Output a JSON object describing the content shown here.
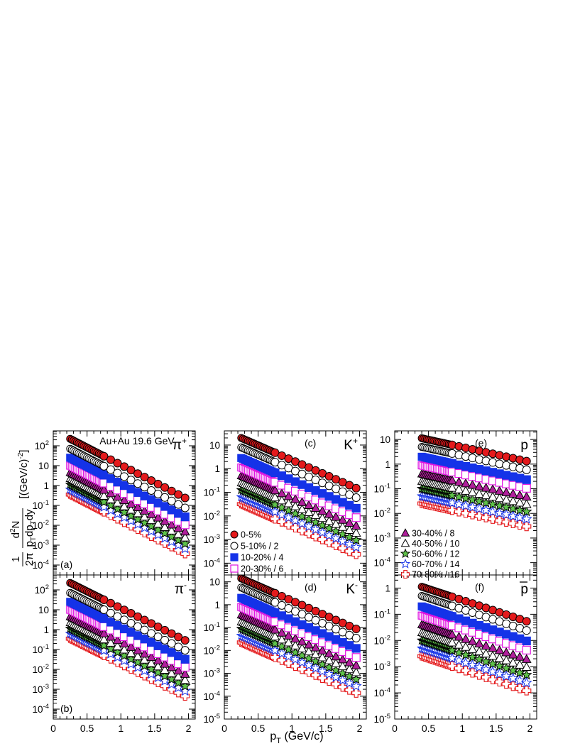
{
  "figure": {
    "header": "Au+Au 19.6 GeV",
    "xlabel": "p",
    "xlabel_sub": "T",
    "xlabel_unit": " (GeV/c)",
    "ylabel_frac_num": "d",
    "ylabel_frac_num_sup": "2",
    "ylabel_frac_num_tail": "N",
    "ylabel_one": "1",
    "ylabel_two_pi": "2π",
    "ylabel_den": "p",
    "ylabel_den_sub": "T",
    "ylabel_den_tail": "dp",
    "ylabel_den_sub2": "T",
    "ylabel_den_end": "dy",
    "ylabel_unit": "[(GeV/c)",
    "ylabel_unit_sup": "-2",
    "ylabel_unit_end": "]"
  },
  "legend_left": [
    {
      "label": "0-5%",
      "marker": "circle",
      "color": "#e41a1c",
      "fill": true
    },
    {
      "label": "5-10% / 2",
      "marker": "circle",
      "color": "#000000",
      "fill": false
    },
    {
      "label": "10-20% / 4",
      "marker": "square",
      "color": "#1533e8",
      "fill": true
    },
    {
      "label": "20-30% / 6",
      "marker": "square",
      "color": "#e015e0",
      "fill": false
    }
  ],
  "legend_right": [
    {
      "label": "30-40% / 8",
      "marker": "triangle",
      "color": "#b0209b",
      "fill": true
    },
    {
      "label": "40-50% / 10",
      "marker": "triangle",
      "color": "#000000",
      "fill": false
    },
    {
      "label": "50-60% / 12",
      "marker": "star",
      "color": "#5fc24a",
      "fill": true
    },
    {
      "label": "60-70% / 14",
      "marker": "star",
      "color": "#1533e8",
      "fill": false
    },
    {
      "label": "70-80% / 16",
      "marker": "cross",
      "color": "#e41a1c",
      "fill": false
    }
  ],
  "chart_data": [
    {
      "panel": "(a)",
      "particle": "π",
      "charge": "+",
      "type": "scatter",
      "xlim": [
        0,
        2.1
      ],
      "ylim_log10": [
        -4.5,
        2.75
      ],
      "scale": "log",
      "xticks": [
        "0",
        "0.5",
        "1",
        "1.5",
        "2"
      ],
      "yticks": [
        {
          "base": "10",
          "exp": "2"
        },
        {
          "base": "10",
          "exp": ""
        },
        {
          "base": "1",
          "exp": ""
        },
        {
          "base": "10",
          "exp": "-1"
        },
        {
          "base": "10",
          "exp": "-2"
        },
        {
          "base": "10",
          "exp": "-3"
        },
        {
          "base": "10",
          "exp": "-4"
        }
      ],
      "spectrum": {
        "x_min": 0.25,
        "x_max": 2.0,
        "log10_y_at_min": 2.35,
        "log10_slope": -1.75,
        "dense_until": 0.75,
        "dense_step": 0.025,
        "sparse_step": 0.1
      },
      "centrality_offsets_log10": [
        0,
        -0.5,
        -0.95,
        -1.35,
        -1.7,
        -2.0,
        -2.3,
        -2.55,
        -2.8
      ]
    },
    {
      "panel": "(b)",
      "particle": "π",
      "charge": "-",
      "type": "scatter",
      "xlim": [
        0,
        2.1
      ],
      "ylim_log10": [
        -4.5,
        2.75
      ],
      "scale": "log",
      "xticks": [
        "0",
        "0.5",
        "1",
        "1.5",
        "2"
      ],
      "yticks": [
        {
          "base": "10",
          "exp": "2"
        },
        {
          "base": "10",
          "exp": ""
        },
        {
          "base": "1",
          "exp": ""
        },
        {
          "base": "10",
          "exp": "-1"
        },
        {
          "base": "10",
          "exp": "-2"
        },
        {
          "base": "10",
          "exp": "-3"
        },
        {
          "base": "10",
          "exp": "-4"
        }
      ],
      "spectrum": {
        "x_min": 0.25,
        "x_max": 2.0,
        "log10_y_at_min": 2.35,
        "log10_slope": -1.7,
        "dense_until": 0.75,
        "dense_step": 0.025,
        "sparse_step": 0.1
      },
      "centrality_offsets_log10": [
        0,
        -0.5,
        -0.95,
        -1.35,
        -1.7,
        -2.0,
        -2.3,
        -2.55,
        -2.8
      ]
    },
    {
      "panel": "(c)",
      "particle": "K",
      "charge": "+",
      "type": "scatter",
      "xlim": [
        0,
        2.1
      ],
      "ylim_log10": [
        -4.5,
        1.6
      ],
      "scale": "log",
      "xticks": [
        "0",
        "0.5",
        "1",
        "1.5",
        "2"
      ],
      "yticks": [
        {
          "base": "10",
          "exp": ""
        },
        {
          "base": "1",
          "exp": ""
        },
        {
          "base": "10",
          "exp": "-1"
        },
        {
          "base": "10",
          "exp": "-2"
        },
        {
          "base": "10",
          "exp": "-3"
        },
        {
          "base": "10",
          "exp": "-4"
        }
      ],
      "spectrum": {
        "x_min": 0.25,
        "x_max": 2.0,
        "log10_y_at_min": 1.3,
        "log10_slope": -1.25,
        "dense_until": 0.75,
        "dense_step": 0.025,
        "sparse_step": 0.1
      },
      "centrality_offsets_log10": [
        0,
        -0.4,
        -0.85,
        -1.25,
        -1.6,
        -1.9,
        -2.2,
        -2.5,
        -2.8
      ]
    },
    {
      "panel": "(d)",
      "particle": "K",
      "charge": "-",
      "type": "scatter",
      "xlim": [
        0,
        2.1
      ],
      "ylim_log10": [
        -5,
        1.3
      ],
      "scale": "log",
      "xticks": [
        "0",
        "0.5",
        "1",
        "1.5",
        "2"
      ],
      "yticks": [
        {
          "base": "10",
          "exp": ""
        },
        {
          "base": "1",
          "exp": ""
        },
        {
          "base": "10",
          "exp": "-1"
        },
        {
          "base": "10",
          "exp": "-2"
        },
        {
          "base": "10",
          "exp": "-3"
        },
        {
          "base": "10",
          "exp": "-4"
        },
        {
          "base": "10",
          "exp": "-5"
        }
      ],
      "spectrum": {
        "x_min": 0.25,
        "x_max": 2.0,
        "log10_y_at_min": 1.15,
        "log10_slope": -1.3,
        "dense_until": 0.75,
        "dense_step": 0.025,
        "sparse_step": 0.1
      },
      "centrality_offsets_log10": [
        0,
        -0.4,
        -0.85,
        -1.25,
        -1.6,
        -1.9,
        -2.2,
        -2.5,
        -2.8
      ]
    },
    {
      "panel": "(e)",
      "particle": "p",
      "charge": "",
      "type": "scatter",
      "xlim": [
        0,
        2.1
      ],
      "ylim_log10": [
        -4.5,
        1.35
      ],
      "scale": "log",
      "xticks": [
        "0",
        "0.5",
        "1",
        "1.5",
        "2"
      ],
      "yticks": [
        {
          "base": "10",
          "exp": ""
        },
        {
          "base": "1",
          "exp": ""
        },
        {
          "base": "10",
          "exp": "-1"
        },
        {
          "base": "10",
          "exp": "-2"
        },
        {
          "base": "10",
          "exp": "-3"
        },
        {
          "base": "10",
          "exp": "-4"
        }
      ],
      "spectrum": {
        "x_min": 0.4,
        "x_max": 2.0,
        "log10_y_at_min": 1.05,
        "log10_slope": -0.6,
        "dense_until": 0.85,
        "dense_step": 0.025,
        "sparse_step": 0.1
      },
      "centrality_offsets_log10": [
        0,
        -0.35,
        -0.75,
        -1.1,
        -1.45,
        -1.75,
        -2.05,
        -2.35,
        -2.65
      ]
    },
    {
      "panel": "(f)",
      "particle": "p",
      "charge": "",
      "type": "scatter",
      "xlim": [
        0,
        2.1
      ],
      "ylim_log10": [
        -5,
        0.5
      ],
      "scale": "log",
      "xticks": [
        "0",
        "0.5",
        "1",
        "1.5",
        "2"
      ],
      "yticks": [
        {
          "base": "1",
          "exp": ""
        },
        {
          "base": "10",
          "exp": "-1"
        },
        {
          "base": "10",
          "exp": "-2"
        },
        {
          "base": "10",
          "exp": "-3"
        },
        {
          "base": "10",
          "exp": "-4"
        },
        {
          "base": "10",
          "exp": "-5"
        }
      ],
      "spectrum": {
        "x_min": 0.4,
        "x_max": 2.0,
        "log10_y_at_min": 0.05,
        "log10_slope": -0.85,
        "dense_until": 0.85,
        "dense_step": 0.025,
        "sparse_step": 0.1
      },
      "centrality_offsets_log10": [
        0,
        -0.35,
        -0.75,
        -1.1,
        -1.45,
        -1.75,
        -2.05,
        -2.35,
        -2.65
      ]
    }
  ]
}
